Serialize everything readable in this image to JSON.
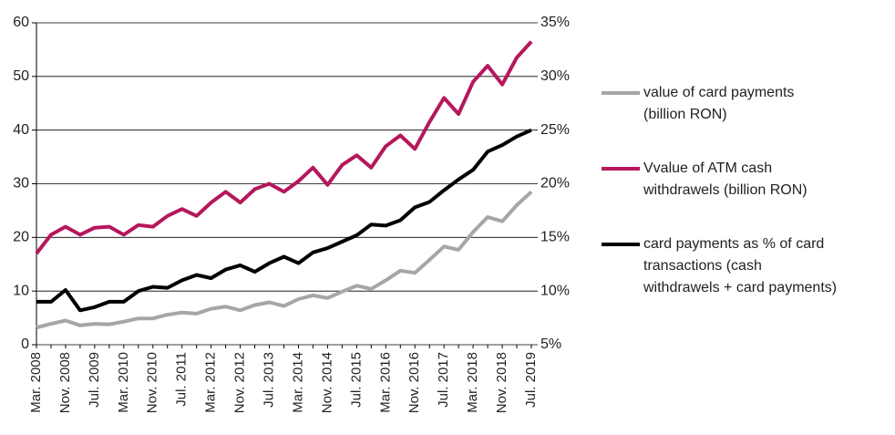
{
  "chart_data": {
    "type": "line",
    "categories": [
      "Mar. 2008",
      null,
      "Nov. 2008",
      null,
      "Jul. 2009",
      null,
      "Mar. 2010",
      null,
      "Nov. 2010",
      null,
      "Jul. 2011",
      null,
      "Mar. 2012",
      null,
      "Nov. 2012",
      null,
      "Jul. 2013",
      null,
      "Mar. 2014",
      null,
      "Nov. 2014",
      null,
      "Jul. 2015",
      null,
      "Mar. 2016",
      null,
      "Nov. 2016",
      null,
      "Jul. 2017",
      null,
      "Mar. 2018",
      null,
      "Nov. 2018",
      null,
      "Jul. 2019"
    ],
    "series": [
      {
        "name": "value of card payments (billion RON)",
        "color": "#a6a6a6",
        "values": [
          3.2,
          3.9,
          4.5,
          3.6,
          3.9,
          3.8,
          4.3,
          4.9,
          4.9,
          5.6,
          6.0,
          5.8,
          6.7,
          7.1,
          6.4,
          7.4,
          7.9,
          7.2,
          8.5,
          9.2,
          8.7,
          9.9,
          11.0,
          10.4,
          12.0,
          13.8,
          13.4,
          15.8,
          18.3,
          17.7,
          21.0,
          23.8,
          23.0,
          26.0,
          28.5
        ]
      },
      {
        "name": "Vvalue of ATM cash withdrawels (billion RON)",
        "color": "#b5175c",
        "values": [
          17,
          20.5,
          22,
          20.5,
          21.8,
          22,
          20.5,
          22.3,
          22,
          24,
          25.3,
          24,
          26.5,
          28.5,
          26.5,
          29,
          30,
          28.5,
          30.5,
          33,
          29.8,
          33.5,
          35.3,
          33,
          37,
          39,
          36.5,
          41.5,
          46,
          43,
          49,
          52,
          48.5,
          53.5,
          56.5
        ]
      },
      {
        "name": "card payments as % of card transactions (cash withdrawels + card payments)",
        "color": "#000000",
        "axis": "y2",
        "values": [
          9.0,
          9.0,
          10.1,
          8.2,
          8.5,
          9.0,
          9.0,
          10.0,
          10.4,
          10.3,
          11.0,
          11.5,
          11.2,
          12.0,
          12.4,
          11.8,
          12.6,
          13.2,
          12.6,
          13.6,
          14.0,
          14.6,
          15.2,
          16.2,
          16.1,
          16.6,
          17.8,
          18.3,
          19.4,
          20.4,
          21.3,
          23.0,
          23.6,
          24.4,
          25.0
        ]
      }
    ],
    "ylim": [
      0,
      60
    ],
    "yticks": [
      0,
      10,
      20,
      30,
      40,
      50,
      60
    ],
    "y2lim": [
      5,
      35
    ],
    "y2ticks": [
      {
        "value": 5,
        "label": "5%"
      },
      {
        "value": 10,
        "label": "10%"
      },
      {
        "value": 15,
        "label": "15%"
      },
      {
        "value": 20,
        "label": "20%"
      },
      {
        "value": 25,
        "label": "25%"
      },
      {
        "value": 30,
        "label": "30%"
      },
      {
        "value": 35,
        "label": "35%"
      }
    ],
    "grid": true,
    "legend": "right"
  }
}
